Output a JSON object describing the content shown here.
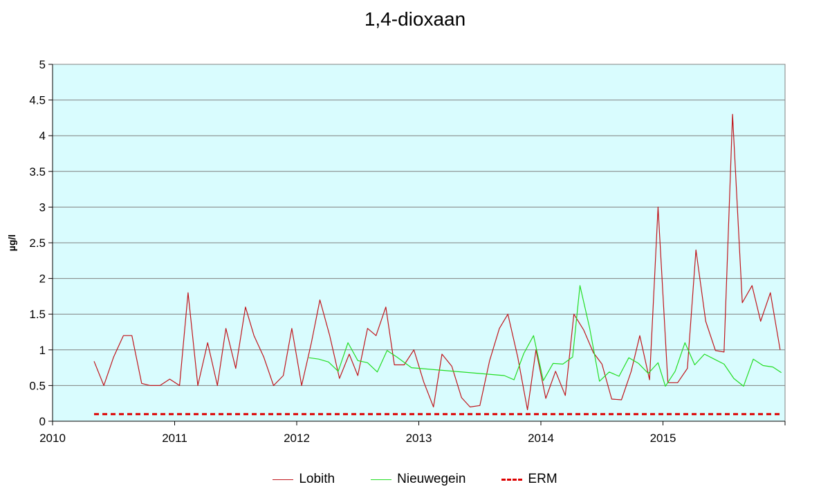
{
  "chart_data": {
    "type": "line",
    "title": "1,4-dioxaan",
    "xlabel": "",
    "ylabel": "µg/l",
    "xlim": [
      2010,
      2016
    ],
    "ylim": [
      0,
      5
    ],
    "x_ticks": [
      "2010",
      "2011",
      "2012",
      "2013",
      "2014",
      "2015"
    ],
    "y_ticks": [
      "0",
      "0.5",
      "1",
      "1.5",
      "2",
      "2.5",
      "3",
      "3.5",
      "4",
      "4.5",
      "5"
    ],
    "grid": true,
    "plot_background": "#d9fcfe",
    "legend_position": "bottom",
    "series": [
      {
        "name": "Lobith",
        "color": "#c0151b",
        "style": "solid",
        "x": [
          2010.34,
          2010.42,
          2010.5,
          2010.58,
          2010.65,
          2010.73,
          2010.8,
          2010.88,
          2010.96,
          2011.04,
          2011.11,
          2011.19,
          2011.27,
          2011.35,
          2011.42,
          2011.5,
          2011.58,
          2011.65,
          2011.73,
          2011.81,
          2011.89,
          2011.96,
          2012.04,
          2012.12,
          2012.19,
          2012.27,
          2012.35,
          2012.43,
          2012.5,
          2012.58,
          2012.65,
          2012.73,
          2012.8,
          2012.88,
          2012.96,
          2013.04,
          2013.12,
          2013.19,
          2013.27,
          2013.35,
          2013.42,
          2013.5,
          2013.58,
          2013.66,
          2013.73,
          2013.81,
          2013.89,
          2013.96,
          2014.04,
          2014.12,
          2014.2,
          2014.27,
          2014.35,
          2014.43,
          2014.5,
          2014.58,
          2014.66,
          2014.74,
          2014.81,
          2014.89,
          2014.96,
          2015.04,
          2015.12,
          2015.2,
          2015.27,
          2015.35,
          2015.43,
          2015.5,
          2015.57,
          2015.65,
          2015.73,
          2015.8,
          2015.88,
          2015.96
        ],
        "values": [
          0.84,
          0.5,
          0.9,
          1.2,
          1.2,
          0.53,
          0.5,
          0.5,
          0.59,
          0.5,
          1.8,
          0.5,
          1.1,
          0.5,
          1.3,
          0.74,
          1.6,
          1.2,
          0.9,
          0.5,
          0.64,
          1.3,
          0.5,
          1.1,
          1.7,
          1.2,
          0.6,
          0.94,
          0.64,
          1.3,
          1.2,
          1.6,
          0.79,
          0.79,
          1.0,
          0.55,
          0.2,
          0.94,
          0.77,
          0.33,
          0.2,
          0.22,
          0.85,
          1.3,
          1.5,
          0.9,
          0.16,
          1.0,
          0.32,
          0.7,
          0.36,
          1.5,
          1.28,
          0.96,
          0.8,
          0.31,
          0.3,
          0.7,
          1.2,
          0.58,
          3.0,
          0.54,
          0.54,
          0.74,
          2.4,
          1.4,
          0.99,
          0.97,
          4.3,
          1.66,
          1.9,
          1.4,
          1.8,
          1.0
        ]
      },
      {
        "name": "Nieuwegein",
        "color": "#22dd22",
        "style": "solid",
        "x": [
          2012.1,
          2012.18,
          2012.26,
          2012.34,
          2012.42,
          2012.5,
          2012.58,
          2012.66,
          2012.74,
          2012.82,
          2012.94,
          2013.7,
          2013.78,
          2013.86,
          2013.94,
          2014.02,
          2014.1,
          2014.18,
          2014.26,
          2014.32,
          2014.4,
          2014.48,
          2014.56,
          2014.64,
          2014.72,
          2014.8,
          2014.88,
          2014.96,
          2015.02,
          2015.1,
          2015.18,
          2015.26,
          2015.34,
          2015.42,
          2015.5,
          2015.58,
          2015.66,
          2015.74,
          2015.82,
          2015.9,
          2015.97
        ],
        "values": [
          0.89,
          0.87,
          0.83,
          0.7,
          1.1,
          0.85,
          0.82,
          0.69,
          0.99,
          0.9,
          0.75,
          0.64,
          0.58,
          0.95,
          1.2,
          0.57,
          0.81,
          0.8,
          0.9,
          1.9,
          1.3,
          0.56,
          0.69,
          0.63,
          0.89,
          0.81,
          0.67,
          0.82,
          0.49,
          0.7,
          1.1,
          0.79,
          0.94,
          0.87,
          0.8,
          0.6,
          0.49,
          0.87,
          0.78,
          0.76,
          0.68
        ]
      },
      {
        "name": "ERM",
        "color": "#dd0000",
        "style": "dashed",
        "x": [
          2010.34,
          2015.96
        ],
        "values": [
          0.1,
          0.1
        ]
      }
    ]
  }
}
